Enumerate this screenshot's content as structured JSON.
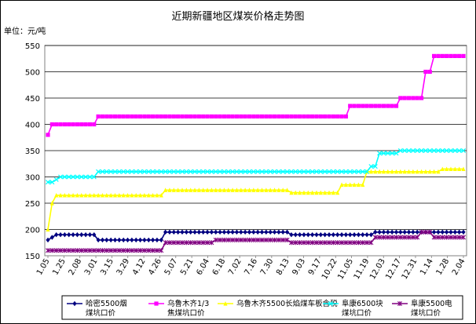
{
  "chart_data": {
    "type": "line",
    "title": "近期新疆地区煤炭价格走势图",
    "unit_label": "单位：元/吨",
    "ylim": [
      150,
      550
    ],
    "yticks": [
      150,
      200,
      250,
      300,
      350,
      400,
      450,
      500,
      550
    ],
    "x_tick_labels": [
      "1.05",
      "1.25",
      "2.08",
      "3.01",
      "3.15",
      "3.29",
      "4.12",
      "4.26",
      "5.07",
      "5.21",
      "6.04",
      "6.18",
      "7.02",
      "7.16",
      "7.30",
      "8.13",
      "9.03",
      "9.17",
      "10.22",
      "11.05",
      "11.19",
      "12.03",
      "12.17",
      "12.31",
      "1.14",
      "1.28",
      "2.04"
    ],
    "grid": true,
    "series": [
      {
        "name": "哈密5500烟煤坑口价",
        "legend_lines": [
          "哈密5500烟",
          "煤坑口价"
        ],
        "color": "#000080",
        "marker": "diamond",
        "values": [
          180,
          185,
          190,
          190,
          190,
          190,
          190,
          190,
          190,
          190,
          190,
          190,
          180,
          180,
          180,
          180,
          180,
          180,
          180,
          180,
          180,
          180,
          180,
          180,
          180,
          180,
          180,
          180,
          195,
          195,
          195,
          195,
          195,
          195,
          195,
          195,
          195,
          195,
          195,
          195,
          195,
          195,
          195,
          195,
          195,
          195,
          195,
          195,
          195,
          195,
          195,
          195,
          195,
          195,
          195,
          195,
          195,
          195,
          190,
          190,
          190,
          190,
          190,
          190,
          190,
          190,
          190,
          190,
          190,
          190,
          190,
          190,
          190,
          190,
          190,
          190,
          190,
          190,
          195,
          195,
          195,
          195,
          195,
          195,
          195,
          195,
          195,
          195,
          195,
          195,
          195,
          195,
          195,
          195,
          195,
          195,
          195,
          195,
          195,
          195
        ]
      },
      {
        "name": "乌鲁木齐1/3焦煤坑口价",
        "legend_lines": [
          "乌鲁木齐1/3",
          "焦煤坑口价"
        ],
        "color": "#ff00ff",
        "marker": "square",
        "values": [
          380,
          400,
          400,
          400,
          400,
          400,
          400,
          400,
          400,
          400,
          400,
          400,
          415,
          415,
          415,
          415,
          415,
          415,
          415,
          415,
          415,
          415,
          415,
          415,
          415,
          415,
          415,
          415,
          415,
          415,
          415,
          415,
          415,
          415,
          415,
          415,
          415,
          415,
          415,
          415,
          415,
          415,
          415,
          415,
          415,
          415,
          415,
          415,
          415,
          415,
          415,
          415,
          415,
          415,
          415,
          415,
          415,
          415,
          415,
          415,
          415,
          415,
          415,
          415,
          415,
          415,
          415,
          415,
          415,
          415,
          415,
          415,
          435,
          435,
          435,
          435,
          435,
          435,
          435,
          435,
          435,
          435,
          435,
          435,
          450,
          450,
          450,
          450,
          450,
          450,
          500,
          500,
          530,
          530,
          530,
          530,
          530,
          530,
          530,
          530
        ]
      },
      {
        "name": "乌鲁木齐5500长焰煤车板含税",
        "legend_lines": [
          "乌鲁木齐5500长焰煤车板含税"
        ],
        "color": "#ffff00",
        "marker": "triangle",
        "values": [
          200,
          250,
          265,
          265,
          265,
          265,
          265,
          265,
          265,
          265,
          265,
          265,
          265,
          265,
          265,
          265,
          265,
          265,
          265,
          265,
          265,
          265,
          265,
          265,
          265,
          265,
          265,
          265,
          275,
          275,
          275,
          275,
          275,
          275,
          275,
          275,
          275,
          275,
          275,
          275,
          275,
          275,
          275,
          275,
          275,
          275,
          275,
          275,
          275,
          275,
          275,
          275,
          275,
          275,
          275,
          275,
          275,
          275,
          270,
          270,
          270,
          270,
          270,
          270,
          270,
          270,
          270,
          270,
          270,
          270,
          285,
          285,
          285,
          285,
          285,
          285,
          310,
          310,
          310,
          310,
          310,
          310,
          310,
          310,
          310,
          310,
          310,
          310,
          310,
          310,
          310,
          310,
          310,
          310,
          315,
          315,
          315,
          315,
          315,
          315
        ]
      },
      {
        "name": "阜康6500块煤坑口价",
        "legend_lines": [
          "阜康6500块",
          "煤坑口价"
        ],
        "color": "#00ffff",
        "marker": "x",
        "values": [
          290,
          290,
          295,
          300,
          300,
          300,
          300,
          300,
          300,
          300,
          300,
          300,
          310,
          310,
          310,
          310,
          310,
          310,
          310,
          310,
          310,
          310,
          310,
          310,
          310,
          310,
          310,
          310,
          310,
          310,
          310,
          310,
          310,
          310,
          310,
          310,
          310,
          310,
          310,
          310,
          310,
          310,
          310,
          310,
          310,
          310,
          310,
          310,
          310,
          310,
          310,
          310,
          310,
          310,
          310,
          310,
          310,
          310,
          310,
          310,
          310,
          310,
          310,
          310,
          310,
          310,
          310,
          310,
          310,
          310,
          310,
          310,
          310,
          310,
          310,
          310,
          310,
          320,
          320,
          345,
          345,
          345,
          345,
          345,
          350,
          350,
          350,
          350,
          350,
          350,
          350,
          350,
          350,
          350,
          350,
          350,
          350,
          350,
          350,
          350
        ]
      },
      {
        "name": "阜康5500电煤坑口价",
        "legend_lines": [
          "阜康5500电",
          "煤坑口价"
        ],
        "color": "#800080",
        "marker": "star",
        "values": [
          160,
          160,
          160,
          160,
          160,
          160,
          160,
          160,
          160,
          160,
          160,
          160,
          160,
          160,
          160,
          160,
          160,
          160,
          160,
          160,
          160,
          160,
          160,
          160,
          160,
          160,
          160,
          160,
          175,
          175,
          175,
          175,
          175,
          175,
          175,
          175,
          175,
          175,
          175,
          175,
          180,
          180,
          180,
          180,
          180,
          180,
          180,
          180,
          180,
          180,
          180,
          180,
          180,
          180,
          180,
          180,
          180,
          180,
          175,
          175,
          175,
          175,
          175,
          175,
          175,
          175,
          175,
          175,
          175,
          175,
          175,
          175,
          175,
          175,
          175,
          175,
          175,
          175,
          185,
          185,
          185,
          185,
          185,
          185,
          185,
          185,
          185,
          185,
          185,
          195,
          195,
          195,
          185,
          185,
          185,
          185,
          185,
          185,
          185,
          185
        ]
      }
    ]
  }
}
